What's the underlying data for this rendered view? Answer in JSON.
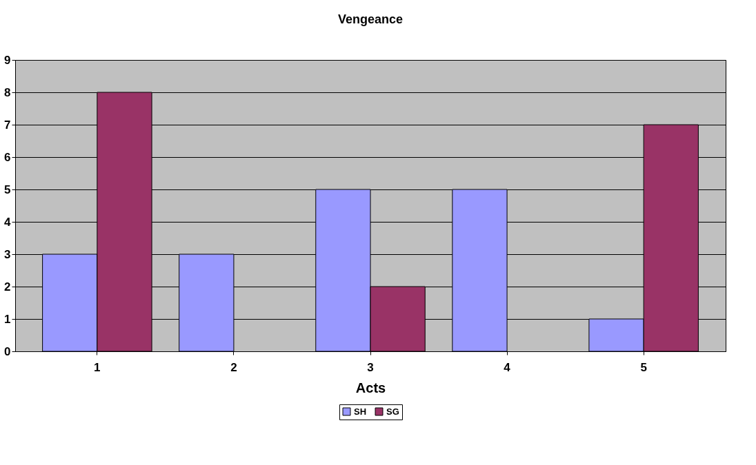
{
  "chart_data": {
    "type": "bar",
    "title": "Vengeance",
    "xlabel": "Acts",
    "categories": [
      "1",
      "2",
      "3",
      "4",
      "5"
    ],
    "series": [
      {
        "name": "SH",
        "color": "#9999ff",
        "values": [
          3,
          3,
          5,
          5,
          1
        ]
      },
      {
        "name": "SG",
        "color": "#993366",
        "values": [
          8,
          null,
          2,
          null,
          7
        ]
      }
    ],
    "ylim": [
      0,
      9
    ],
    "yticks": [
      0,
      1,
      2,
      3,
      4,
      5,
      6,
      7,
      8,
      9
    ],
    "grid": "y",
    "legend": "bottom"
  }
}
